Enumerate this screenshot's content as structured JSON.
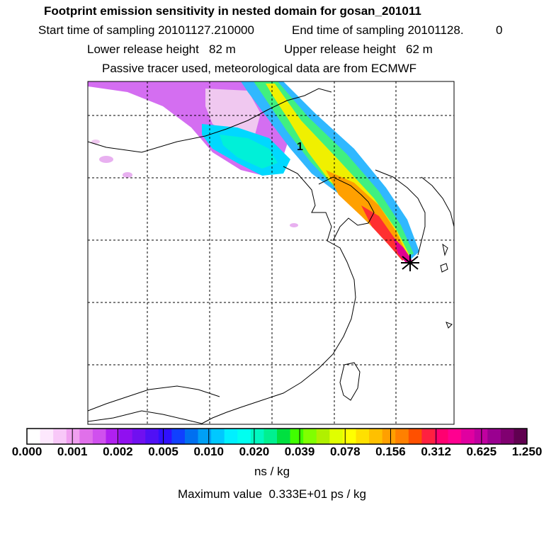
{
  "header": {
    "title": "Footprint emission sensitivity in nested domain for gosan_201011",
    "start_time": "Start time of sampling 20101127.210000",
    "end_time": "End time of sampling 20101128.",
    "end_time_suffix": "0",
    "lower_release": "Lower release height   82 m",
    "upper_release": "Upper release height   62 m",
    "tracer_note": "Passive tracer used, meteorological data are from ECMWF"
  },
  "map": {
    "plume_label": "1",
    "colors": {
      "frame": "#000000",
      "grid": "#000000",
      "coast": "#000000",
      "receptor": "#000000"
    }
  },
  "colorbar": {
    "colors": [
      "#ffffff",
      "#fde8fd",
      "#f8c8f8",
      "#f0a0f0",
      "#e070ea",
      "#d050ee",
      "#b020f0",
      "#9010f0",
      "#7010f0",
      "#5010f5",
      "#3010ff",
      "#1040ff",
      "#0070f0",
      "#00a0f5",
      "#00c8ff",
      "#00f0ff",
      "#00fff0",
      "#00f8c0",
      "#00f090",
      "#00e040",
      "#40ff00",
      "#80ff00",
      "#b0f000",
      "#e0ff00",
      "#ffff00",
      "#ffe000",
      "#ffc000",
      "#ffa000",
      "#ff8000",
      "#ff5000",
      "#ff2040",
      "#ff0070",
      "#ff0090",
      "#e000a0",
      "#c000a0",
      "#9a0090",
      "#800070",
      "#600050"
    ],
    "ticks": [
      "0.000",
      "0.001",
      "0.002",
      "0.005",
      "0.010",
      "0.020",
      "0.039",
      "0.078",
      "0.156",
      "0.312",
      "0.625",
      "1.250"
    ],
    "units": "ns / kg",
    "max_value": "Maximum value  0.333E+01 ps / kg"
  }
}
